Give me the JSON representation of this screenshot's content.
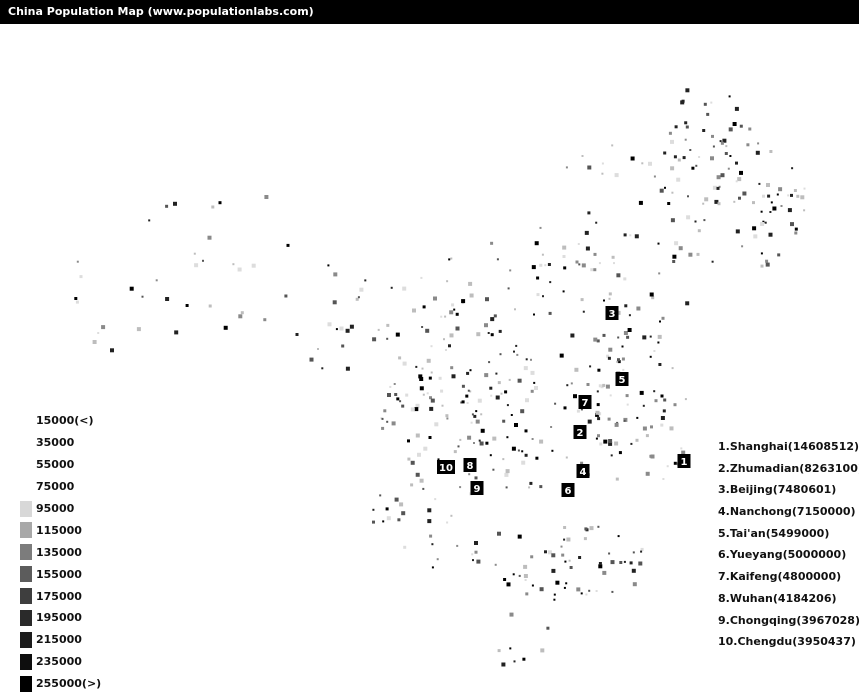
{
  "window": {
    "title": "China Population Map (www.populationlabs.com)"
  },
  "scale": {
    "entries": [
      {
        "label": "15000(<)",
        "color": "#ffffff"
      },
      {
        "label": "35000",
        "color": "#ffffff"
      },
      {
        "label": "55000",
        "color": "#ffffff"
      },
      {
        "label": "75000",
        "color": "#ffffff"
      },
      {
        "label": "95000",
        "color": "#d8d8d8"
      },
      {
        "label": "115000",
        "color": "#a8a8a8"
      },
      {
        "label": "135000",
        "color": "#7c7c7c"
      },
      {
        "label": "155000",
        "color": "#5c5c5c"
      },
      {
        "label": "175000",
        "color": "#3e3e3e"
      },
      {
        "label": "195000",
        "color": "#2a2a2a"
      },
      {
        "label": "215000",
        "color": "#1c1c1c"
      },
      {
        "label": "235000",
        "color": "#0e0e0e"
      },
      {
        "label": "255000(>)",
        "color": "#000000"
      }
    ]
  },
  "ranking": [
    {
      "rank": "1",
      "city": "Shanghai",
      "population": 14608512,
      "text": "1.Shanghai(14608512)"
    },
    {
      "rank": "2",
      "city": "Zhumadian",
      "population": 8263100,
      "text": "2.Zhumadian(8263100)"
    },
    {
      "rank": "3",
      "city": "Beijing",
      "population": 7480601,
      "text": "3.Beijing(7480601)"
    },
    {
      "rank": "4",
      "city": "Nanchong",
      "population": 7150000,
      "text": "4.Nanchong(7150000)"
    },
    {
      "rank": "5",
      "city": "Tai'an",
      "population": 5499000,
      "text": "5.Tai'an(5499000)"
    },
    {
      "rank": "6",
      "city": "Yueyang",
      "population": 5000000,
      "text": "6.Yueyang(5000000)"
    },
    {
      "rank": "7",
      "city": "Kaifeng",
      "population": 4800000,
      "text": "7.Kaifeng(4800000)"
    },
    {
      "rank": "8",
      "city": "Wuhan",
      "population": 4184206,
      "text": "8.Wuhan(4184206)"
    },
    {
      "rank": "9",
      "city": "Chongqing",
      "population": 3967028,
      "text": "9.Chongqing(3967028)"
    },
    {
      "rank": "10",
      "city": "Chengdu",
      "population": 3950437,
      "text": "10.Chengdu(3950437)"
    }
  ],
  "colors": {
    "titlebar": "#000000",
    "title_text": "#ffffff",
    "marker": "#000000"
  }
}
